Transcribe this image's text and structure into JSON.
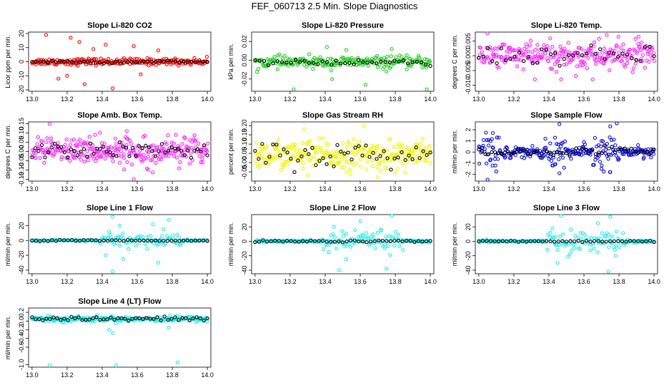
{
  "figure": {
    "title": "FEF_060713  2.5 Min. Slope Diagnostics"
  },
  "colors": {
    "red": "#ff0000",
    "green": "#22cc22",
    "magenta": "#ff22ff",
    "yellow": "#f5f500",
    "blue": "#1010dd",
    "cyan": "#22eeee",
    "black": "#000000"
  },
  "chart_data": [
    {
      "id": "p1",
      "type": "scatter",
      "title": "Slope Li-820 CO2",
      "ylabel": "Licor ppm per min.",
      "xlim": [
        12.98,
        14.02
      ],
      "ylim": [
        -21,
        21
      ],
      "xticks": [
        13.0,
        13.2,
        13.4,
        13.6,
        13.8,
        14.0
      ],
      "xtick_labels": [
        "13.0",
        "13.2",
        "13.4",
        "13.6",
        "13.8",
        "14.0"
      ],
      "yticks": [
        -20,
        -10,
        0,
        10,
        20
      ],
      "ytick_labels": [
        "-20",
        "-10",
        "0",
        "10",
        "20"
      ],
      "color": "red",
      "x_range": [
        13.0,
        14.0
      ],
      "n": 200,
      "base": 0,
      "spread": 1.2,
      "outliers": [
        [
          13.08,
          19
        ],
        [
          13.22,
          17
        ],
        [
          13.27,
          14
        ],
        [
          13.15,
          -12
        ],
        [
          13.3,
          -16
        ],
        [
          13.46,
          -19
        ],
        [
          13.42,
          12
        ],
        [
          13.58,
          11
        ],
        [
          13.62,
          -9
        ],
        [
          13.72,
          8
        ],
        [
          13.35,
          9
        ],
        [
          13.2,
          -10
        ]
      ],
      "black_n": 45,
      "black_spread": 0.6
    },
    {
      "id": "p2",
      "type": "scatter",
      "title": "Slope Li-820 Pressure",
      "ylabel": "kPa per min.",
      "xlim": [
        12.98,
        14.02
      ],
      "ylim": [
        -0.033,
        0.03
      ],
      "xticks": [
        13.0,
        13.2,
        13.4,
        13.6,
        13.8,
        14.0
      ],
      "xtick_labels": [
        "13.0",
        "13.2",
        "13.4",
        "13.6",
        "13.8",
        "14.0"
      ],
      "yticks": [
        -0.02,
        0.0,
        0.02
      ],
      "ytick_labels": [
        "-0.02",
        "0.00",
        "0.02"
      ],
      "color": "green",
      "x_range": [
        13.0,
        14.0
      ],
      "n": 220,
      "base": -0.002,
      "spread": 0.003,
      "outliers": [
        [
          13.22,
          -0.031
        ],
        [
          13.63,
          -0.026
        ],
        [
          13.98,
          -0.031
        ],
        [
          13.41,
          0.014
        ],
        [
          13.52,
          0.011
        ],
        [
          13.44,
          -0.02
        ],
        [
          13.78,
          0.012
        ],
        [
          13.75,
          -0.012
        ]
      ],
      "black_n": 40,
      "black_spread": 0.002
    },
    {
      "id": "p3",
      "type": "scatter",
      "title": "Slope Li-820 Temp.",
      "ylabel": "degrees C per min.",
      "xlim": [
        12.98,
        14.02
      ],
      "ylim": [
        -0.012,
        0.008
      ],
      "xticks": [
        13.0,
        13.2,
        13.4,
        13.6,
        13.8,
        14.0
      ],
      "xtick_labels": [
        "13.0",
        "13.2",
        "13.4",
        "13.6",
        "13.8",
        "14.0"
      ],
      "yticks": [
        -0.01,
        -0.005,
        0.0,
        0.005
      ],
      "ytick_labels": [
        "-0.010",
        "-0.005",
        "0.000",
        "0.005"
      ],
      "color": "magenta",
      "x_range": [
        13.0,
        14.0
      ],
      "n": 260,
      "base": 0.0,
      "spread": 0.0024,
      "outliers": [
        [
          13.73,
          0.007
        ],
        [
          13.65,
          -0.008
        ],
        [
          13.47,
          -0.008
        ],
        [
          13.32,
          -0.008
        ],
        [
          13.91,
          0.004
        ]
      ],
      "black_n": 40,
      "black_spread": 0.0015
    },
    {
      "id": "p4",
      "type": "scatter",
      "title": "Slope Amb. Box Temp.",
      "ylabel": "degrees C per min.",
      "xlim": [
        12.98,
        14.02
      ],
      "ylim": [
        -0.16,
        0.16
      ],
      "xticks": [
        13.0,
        13.2,
        13.4,
        13.6,
        13.8,
        14.0
      ],
      "xtick_labels": [
        "13.0",
        "13.2",
        "13.4",
        "13.6",
        "13.8",
        "14.0"
      ],
      "yticks": [
        -0.15,
        -0.1,
        -0.05,
        0.0,
        0.05,
        0.1,
        0.15
      ],
      "ytick_labels": [
        "-0.15",
        "-0.10",
        "-0.05",
        "0.00",
        "0.05",
        "0.10",
        "0.15"
      ],
      "color": "magenta",
      "x_range": [
        13.0,
        14.0
      ],
      "n": 280,
      "base": 0.005,
      "spread": 0.035,
      "outliers": [
        [
          13.1,
          0.15
        ],
        [
          13.58,
          -0.15
        ],
        [
          13.54,
          0.11
        ],
        [
          13.36,
          0.09
        ],
        [
          13.82,
          0.09
        ]
      ],
      "black_n": 55,
      "black_spread": 0.02
    },
    {
      "id": "p5",
      "type": "scatter",
      "title": "Slope Gas Stream RH",
      "ylabel": "percent per min.",
      "xlim": [
        12.98,
        14.02
      ],
      "ylim": [
        -0.1,
        0.22
      ],
      "xticks": [
        13.0,
        13.2,
        13.4,
        13.6,
        13.8,
        14.0
      ],
      "xtick_labels": [
        "13.0",
        "13.2",
        "13.4",
        "13.6",
        "13.8",
        "14.0"
      ],
      "yticks": [
        -0.05,
        0.0,
        0.05,
        0.1,
        0.15,
        0.2
      ],
      "ytick_labels": [
        "-0.05",
        "0.00",
        "0.05",
        "0.10",
        "0.15",
        "0.20"
      ],
      "color": "yellow",
      "x_range": [
        13.0,
        14.0
      ],
      "n": 280,
      "base": 0.04,
      "spread": 0.04,
      "outliers": [
        [
          13.62,
          0.2
        ],
        [
          13.28,
          0.18
        ],
        [
          13.7,
          -0.08
        ],
        [
          13.3,
          -0.07
        ]
      ],
      "black_n": 50,
      "black_spread": 0.035
    },
    {
      "id": "p6",
      "type": "scatter",
      "title": "Slope Sample Flow",
      "ylabel": "ml/min per min.",
      "xlim": [
        12.98,
        14.02
      ],
      "ylim": [
        -2.6,
        2.7
      ],
      "xticks": [
        13.0,
        13.2,
        13.4,
        13.6,
        13.8,
        14.0
      ],
      "xtick_labels": [
        "13.0",
        "13.2",
        "13.4",
        "13.6",
        "13.8",
        "14.0"
      ],
      "yticks": [
        -2,
        -1,
        0,
        1,
        2
      ],
      "ytick_labels": [
        "-2",
        "-1",
        "0",
        "1",
        "2"
      ],
      "color": "blue",
      "x_range": [
        13.0,
        14.0
      ],
      "n": 260,
      "base": 0.0,
      "spread": 0.25,
      "outliers": [
        [
          13.46,
          2.5
        ],
        [
          13.75,
          2.3
        ],
        [
          13.05,
          -2.5
        ],
        [
          13.46,
          -1.9
        ],
        [
          13.75,
          -1.8
        ],
        [
          13.08,
          1.7
        ],
        [
          13.38,
          1.2
        ],
        [
          13.7,
          -1.5
        ],
        [
          13.42,
          -1.2
        ],
        [
          13.6,
          0.9
        ]
      ],
      "black_n": 55,
      "black_spread": 0.2
    },
    {
      "id": "p7",
      "type": "scatter",
      "title": "Slope Line 1 Flow",
      "ylabel": "ml/min per min.",
      "xlim": [
        12.98,
        14.02
      ],
      "ylim": [
        -45,
        35
      ],
      "xticks": [
        13.0,
        13.2,
        13.4,
        13.6,
        13.8,
        14.0
      ],
      "xtick_labels": [
        "13.0",
        "13.2",
        "13.4",
        "13.6",
        "13.8",
        "14.0"
      ],
      "yticks": [
        -40,
        -20,
        0,
        20
      ],
      "ytick_labels": [
        "-40",
        "-20",
        "0",
        "20"
      ],
      "color": "cyan",
      "x_range": [
        13.0,
        14.0
      ],
      "n": 160,
      "base": 0.0,
      "spread": 0.6,
      "outliers": [
        [
          13.46,
          32
        ],
        [
          13.78,
          28
        ],
        [
          13.46,
          -42
        ],
        [
          13.72,
          -30
        ],
        [
          13.5,
          20
        ],
        [
          13.42,
          -20
        ],
        [
          13.75,
          15
        ],
        [
          13.52,
          -25
        ],
        [
          13.69,
          22
        ],
        [
          13.44,
          12
        ]
      ],
      "black_n": 45,
      "black_spread": 0.4
    },
    {
      "id": "p8",
      "type": "scatter",
      "title": "Slope Line 2 Flow",
      "ylabel": "ml/min per min.",
      "xlim": [
        12.98,
        14.02
      ],
      "ylim": [
        -45,
        37
      ],
      "xticks": [
        13.0,
        13.2,
        13.4,
        13.6,
        13.8,
        14.0
      ],
      "xtick_labels": [
        "13.0",
        "13.2",
        "13.4",
        "13.6",
        "13.8",
        "14.0"
      ],
      "yticks": [
        -40,
        -20,
        0,
        20
      ],
      "ytick_labels": [
        "-40",
        "-20",
        "0",
        "20"
      ],
      "color": "cyan",
      "x_range": [
        13.0,
        14.0
      ],
      "n": 180,
      "base": 0.0,
      "spread": 0.8,
      "outliers": [
        [
          13.78,
          35
        ],
        [
          13.48,
          -40
        ],
        [
          13.75,
          -38
        ],
        [
          13.6,
          28
        ],
        [
          13.45,
          20
        ],
        [
          13.52,
          -25
        ],
        [
          13.72,
          15
        ],
        [
          13.42,
          -15
        ]
      ],
      "black_n": 45,
      "black_spread": 0.6
    },
    {
      "id": "p9",
      "type": "scatter",
      "title": "Slope Line 3 Flow",
      "ylabel": "ml/min per min.",
      "xlim": [
        12.98,
        14.02
      ],
      "ylim": [
        -45,
        37
      ],
      "xticks": [
        13.0,
        13.2,
        13.4,
        13.6,
        13.8,
        14.0
      ],
      "xtick_labels": [
        "13.0",
        "13.2",
        "13.4",
        "13.6",
        "13.8",
        "14.0"
      ],
      "yticks": [
        -40,
        -20,
        0,
        20
      ],
      "ytick_labels": [
        "-40",
        "-20",
        "0",
        "20"
      ],
      "color": "cyan",
      "x_range": [
        13.0,
        14.0
      ],
      "n": 180,
      "base": 0.0,
      "spread": 0.8,
      "outliers": [
        [
          13.47,
          35
        ],
        [
          13.75,
          34
        ],
        [
          13.74,
          -42
        ],
        [
          13.45,
          -30
        ],
        [
          13.68,
          25
        ],
        [
          13.52,
          -18
        ],
        [
          13.42,
          18
        ],
        [
          13.78,
          -20
        ]
      ],
      "black_n": 45,
      "black_spread": 0.6
    },
    {
      "id": "p10",
      "type": "scatter",
      "title": "Slope Line 4 (LT) Flow",
      "ylabel": "ml/min per min.",
      "xlim": [
        12.98,
        14.02
      ],
      "ylim": [
        -1.06,
        0.3
      ],
      "xticks": [
        13.0,
        13.2,
        13.4,
        13.6,
        13.8,
        14.0
      ],
      "xtick_labels": [
        "13.0",
        "13.2",
        "13.4",
        "13.6",
        "13.8",
        "14.0"
      ],
      "yticks": [
        -1.0,
        -0.6,
        -0.4,
        -0.2,
        0.0,
        0.2
      ],
      "ytick_labels": [
        "-1.0",
        "-0.6",
        "-0.4",
        "-0.2",
        "0.0",
        "0.2"
      ],
      "color": "cyan",
      "x_range": [
        13.0,
        14.0
      ],
      "n": 220,
      "base": 0.05,
      "spread": 0.03,
      "outliers": [
        [
          13.48,
          -1.02
        ],
        [
          13.83,
          -0.95
        ],
        [
          13.1,
          -1.02
        ],
        [
          13.46,
          -0.28
        ],
        [
          13.44,
          -0.2
        ],
        [
          13.78,
          -0.15
        ]
      ],
      "black_n": 50,
      "black_spread": 0.025
    }
  ]
}
